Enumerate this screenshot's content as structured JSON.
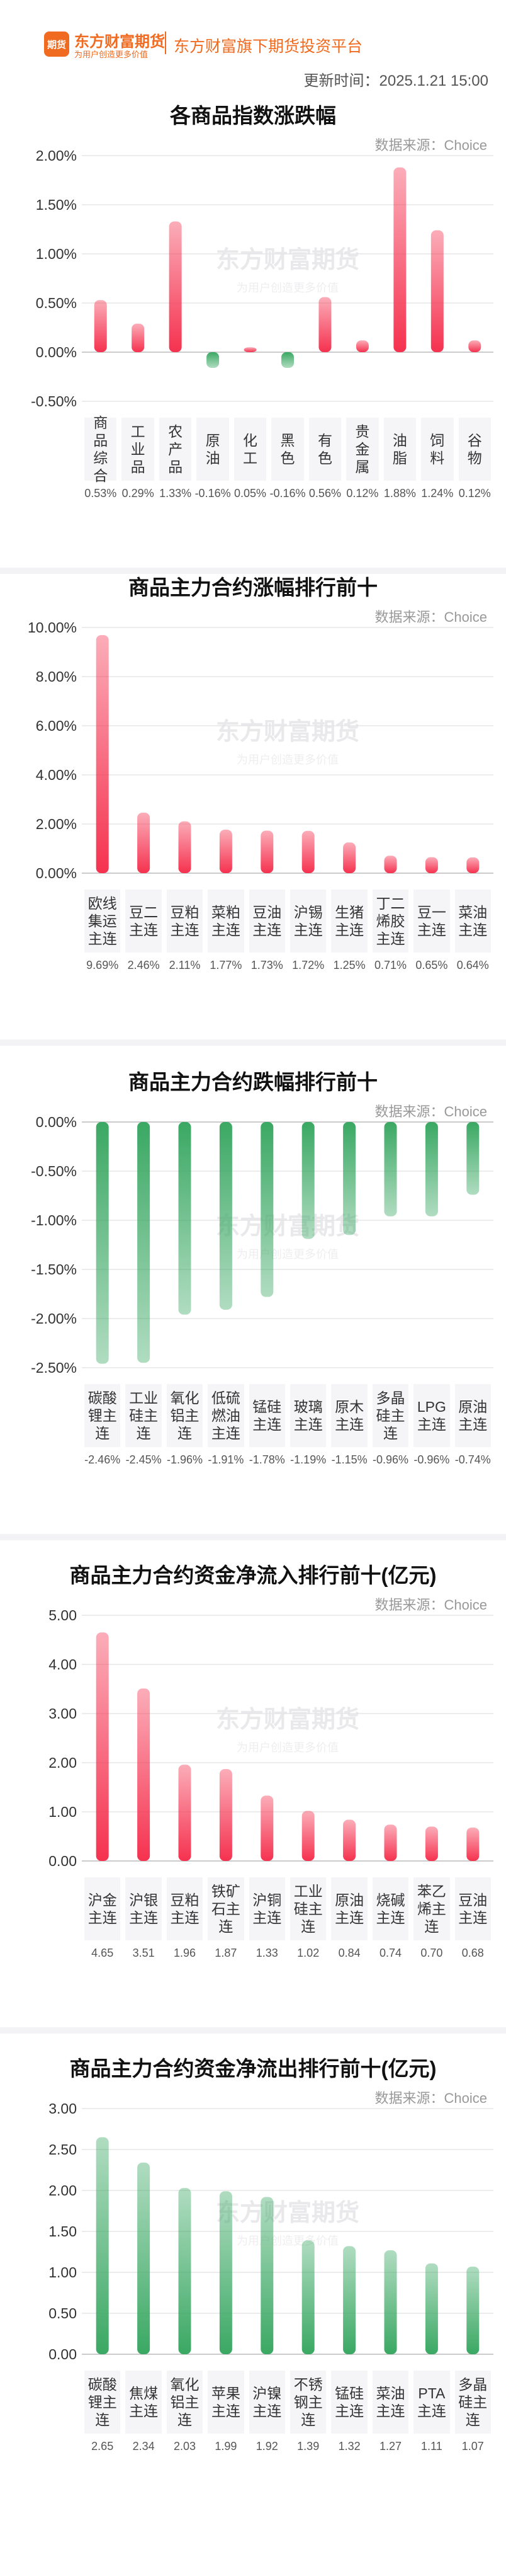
{
  "header": {
    "brand": "东方财富期货",
    "logo": "期货",
    "slogan": "为用户创造更多价值",
    "platform": "东方财富旗下期货投资平台",
    "update_time": "更新时间：2025.1.21 15:00"
  },
  "chart_data": [
    {
      "type": "bar",
      "title": "各商品指数涨跌幅",
      "source": "数据来源：Choice",
      "watermark": "东方财富期货",
      "watermark_sub": "为用户创造更多价值",
      "categories": [
        "商品综合",
        "工业品",
        "农产品",
        "原油",
        "化工",
        "黑色",
        "有色",
        "贵金属",
        "油脂",
        "饲料",
        "谷物"
      ],
      "values": [
        0.53,
        0.29,
        1.33,
        -0.16,
        0.05,
        -0.16,
        0.56,
        0.12,
        1.88,
        1.24,
        0.12
      ],
      "value_labels": [
        "0.53%",
        "0.29%",
        "1.33%",
        "-0.16%",
        "0.05%",
        "-0.16%",
        "0.56%",
        "0.12%",
        "1.88%",
        "1.24%",
        "0.12%"
      ],
      "color": "#f5324f",
      "negative_color": "#3aa863",
      "ylim": [
        -0.5,
        2.0
      ],
      "yticks": [
        {
          "value": -0.5,
          "label": "-0.50%"
        },
        {
          "value": 0,
          "label": "0.00%"
        },
        {
          "value": 0.5,
          "label": "0.50%"
        },
        {
          "value": 1.0,
          "label": "1.00%"
        },
        {
          "value": 1.5,
          "label": "1.50%"
        },
        {
          "value": 2.0,
          "label": "2.00%"
        }
      ],
      "grid": true
    },
    {
      "type": "bar",
      "title": "商品主力合约涨幅排行前十",
      "source": "数据来源：Choice",
      "watermark": "东方财富期货",
      "watermark_sub": "为用户创造更多价值",
      "categories": [
        "欧线集运主连",
        "豆二主连",
        "豆粕主连",
        "菜粕主连",
        "豆油主连",
        "沪锡主连",
        "生猪主连",
        "丁二烯胶主连",
        "豆一主连",
        "菜油主连"
      ],
      "values": [
        9.69,
        2.46,
        2.11,
        1.77,
        1.73,
        1.72,
        1.25,
        0.71,
        0.65,
        0.64
      ],
      "value_labels": [
        "9.69%",
        "2.46%",
        "2.11%",
        "1.77%",
        "1.73%",
        "1.72%",
        "1.25%",
        "0.71%",
        "0.65%",
        "0.64%"
      ],
      "color": "#f5324f",
      "ylim": [
        0,
        10
      ],
      "yticks": [
        {
          "value": 0,
          "label": "0.00%"
        },
        {
          "value": 2,
          "label": "2.00%"
        },
        {
          "value": 4,
          "label": "4.00%"
        },
        {
          "value": 6,
          "label": "6.00%"
        },
        {
          "value": 8,
          "label": "8.00%"
        },
        {
          "value": 10,
          "label": "10.00%"
        }
      ],
      "grid": true
    },
    {
      "type": "bar",
      "title": "商品主力合约跌幅排行前十",
      "source": "数据来源：Choice",
      "watermark": "东方财富期货",
      "watermark_sub": "为用户创造更多价值",
      "categories": [
        "碳酸锂主连",
        "工业硅主连",
        "氧化铝主连",
        "低硫燃油主连",
        "锰硅主连",
        "玻璃主连",
        "原木主连",
        "多晶硅主连",
        "LPG主连",
        "原油主连"
      ],
      "values": [
        -2.46,
        -2.45,
        -1.96,
        -1.91,
        -1.78,
        -1.19,
        -1.15,
        -0.96,
        -0.96,
        -0.74
      ],
      "value_labels": [
        "-2.46%",
        "-2.45%",
        "-1.96%",
        "-1.91%",
        "-1.78%",
        "-1.19%",
        "-1.15%",
        "-0.96%",
        "-0.96%",
        "-0.74%"
      ],
      "color": "#3aa863",
      "ylim": [
        -2.5,
        0
      ],
      "yticks": [
        {
          "value": -2.5,
          "label": "-2.50%"
        },
        {
          "value": -2.0,
          "label": "-2.00%"
        },
        {
          "value": -1.5,
          "label": "-1.50%"
        },
        {
          "value": -1.0,
          "label": "-1.00%"
        },
        {
          "value": -0.5,
          "label": "-0.50%"
        },
        {
          "value": 0,
          "label": "0.00%"
        }
      ],
      "grid": true
    },
    {
      "type": "bar",
      "title": "商品主力合约资金净流入排行前十(亿元)",
      "source": "数据来源：Choice",
      "watermark": "东方财富期货",
      "watermark_sub": "为用户创造更多价值",
      "categories": [
        "沪金主连",
        "沪银主连",
        "豆粕主连",
        "铁矿石主连",
        "沪铜主连",
        "工业硅主连",
        "原油主连",
        "烧碱主连",
        "苯乙烯主连",
        "豆油主连"
      ],
      "values": [
        4.65,
        3.51,
        1.96,
        1.87,
        1.33,
        1.02,
        0.84,
        0.74,
        0.7,
        0.68
      ],
      "value_labels": [
        "4.65",
        "3.51",
        "1.96",
        "1.87",
        "1.33",
        "1.02",
        "0.84",
        "0.74",
        "0.70",
        "0.68"
      ],
      "color": "#f5324f",
      "ylim": [
        0,
        5
      ],
      "yticks": [
        {
          "value": 0,
          "label": "0.00"
        },
        {
          "value": 1,
          "label": "1.00"
        },
        {
          "value": 2,
          "label": "2.00"
        },
        {
          "value": 3,
          "label": "3.00"
        },
        {
          "value": 4,
          "label": "4.00"
        },
        {
          "value": 5,
          "label": "5.00"
        }
      ],
      "grid": true
    },
    {
      "type": "bar",
      "title": "商品主力合约资金净流出排行前十(亿元)",
      "source": "数据来源：Choice",
      "watermark": "东方财富期货",
      "watermark_sub": "为用户创造更多价值",
      "categories": [
        "碳酸锂主连",
        "焦煤主连",
        "氧化铝主连",
        "苹果主连",
        "沪镍主连",
        "不锈钢主连",
        "锰硅主连",
        "菜油主连",
        "PTA主连",
        "多晶硅主连"
      ],
      "values": [
        2.65,
        2.34,
        2.03,
        1.99,
        1.92,
        1.39,
        1.32,
        1.27,
        1.11,
        1.07
      ],
      "value_labels": [
        "2.65",
        "2.34",
        "2.03",
        "1.99",
        "1.92",
        "1.39",
        "1.32",
        "1.27",
        "1.11",
        "1.07"
      ],
      "color": "#3aa863",
      "ylim": [
        0,
        3
      ],
      "yticks": [
        {
          "value": 0,
          "label": "0.00"
        },
        {
          "value": 0.5,
          "label": "0.50"
        },
        {
          "value": 1.0,
          "label": "1.00"
        },
        {
          "value": 1.5,
          "label": "1.50"
        },
        {
          "value": 2.0,
          "label": "2.00"
        },
        {
          "value": 2.5,
          "label": "2.50"
        },
        {
          "value": 3.0,
          "label": "3.00"
        }
      ],
      "grid": true
    }
  ]
}
